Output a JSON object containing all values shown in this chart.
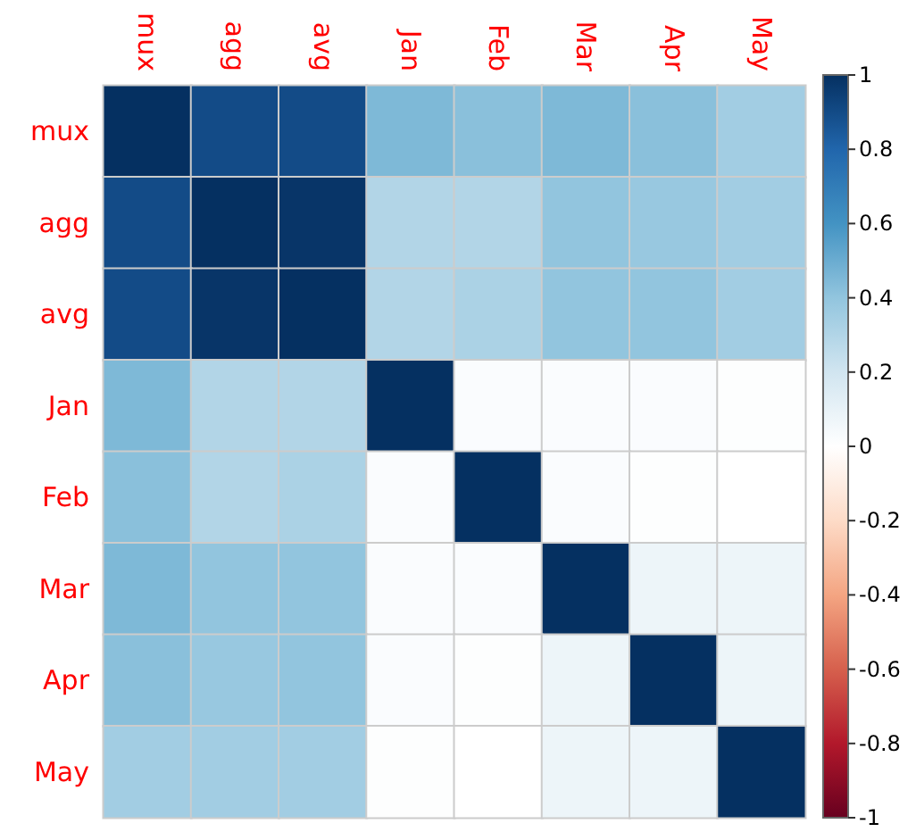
{
  "chart_data": {
    "type": "heatmap",
    "categories": [
      "mux",
      "agg",
      "avg",
      "Jan",
      "Feb",
      "Mar",
      "Apr",
      "May"
    ],
    "y_categories": [
      "mux",
      "agg",
      "avg",
      "Jan",
      "Feb",
      "Mar",
      "Apr",
      "May"
    ],
    "cells": [
      [
        1,
        0.9,
        0.9,
        0.45,
        0.42,
        0.45,
        0.42,
        0.35
      ],
      [
        0.9,
        1,
        0.98,
        0.3,
        0.3,
        0.4,
        0.38,
        0.35
      ],
      [
        0.9,
        0.98,
        1,
        0.3,
        0.32,
        0.4,
        0.4,
        0.35
      ],
      [
        0.45,
        0.3,
        0.3,
        1,
        0.02,
        0.02,
        0.02,
        0.01
      ],
      [
        0.42,
        0.3,
        0.32,
        0.02,
        1,
        0.02,
        0.01,
        0
      ],
      [
        0.45,
        0.4,
        0.4,
        0.02,
        0.02,
        1,
        0.08,
        0.08
      ],
      [
        0.42,
        0.38,
        0.4,
        0.02,
        0.01,
        0.08,
        1,
        0.08
      ],
      [
        0.35,
        0.35,
        0.35,
        0.01,
        0,
        0.08,
        0.08,
        1
      ]
    ],
    "clim": [
      -1,
      1
    ],
    "cticks": [
      -1,
      -0.8,
      -0.6,
      -0.4,
      -0.2,
      0,
      0.2,
      0.4,
      0.6,
      0.8,
      1
    ]
  }
}
